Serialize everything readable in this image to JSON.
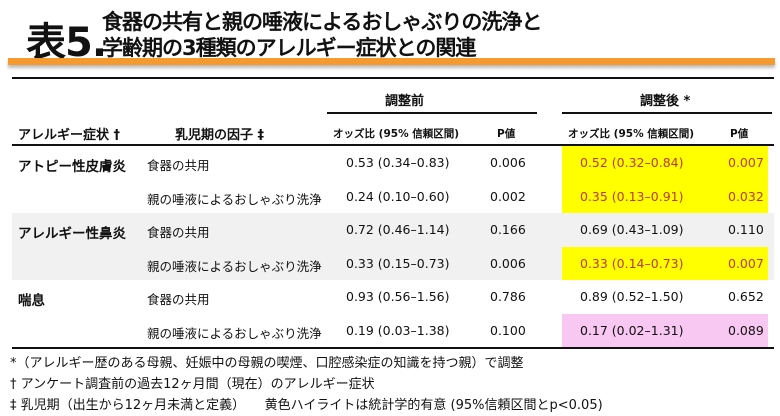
{
  "title": {
    "number": "表5.",
    "line1": "食器の共有と親の唾液によるおしゃぶりの洗浄と",
    "line2": "学齢期の3種類のアレルギー症状との関連"
  },
  "colors": {
    "accent_bar": "#f59a2e",
    "significant_highlight": "#ffff00",
    "pink_highlight": "#f8c8f2",
    "significant_text": "#c0392b"
  },
  "table": {
    "headers": {
      "symptom": "アレルギー症状 †",
      "factor": "乳児期の因子 ‡",
      "before": "調整前",
      "after": "調整後 *",
      "or": "オッズ比 (95% 信頼区間)",
      "p": "P値"
    },
    "rows": [
      {
        "symptom": "アトピー性皮膚炎",
        "factor": "食器の共用",
        "or_before": "0.53 (0.34–0.83)",
        "p_before": "0.006",
        "or_after": "0.52 (0.32–0.84)",
        "p_after": "0.007",
        "highlight": "yellow"
      },
      {
        "symptom": "",
        "factor": "親の唾液によるおしゃぶり洗浄",
        "or_before": "0.24 (0.10–0.60)",
        "p_before": "0.002",
        "or_after": "0.35 (0.13–0.91)",
        "p_after": "0.032",
        "highlight": "yellow"
      },
      {
        "symptom": "アレルギー性鼻炎",
        "factor": "食器の共用",
        "or_before": "0.72 (0.46–1.14)",
        "p_before": "0.166",
        "or_after": "0.69 (0.43–1.09)",
        "p_after": "0.110",
        "highlight": "none"
      },
      {
        "symptom": "",
        "factor": "親の唾液によるおしゃぶり洗浄",
        "or_before": "0.33 (0.15–0.73)",
        "p_before": "0.006",
        "or_after": "0.33 (0.14–0.73)",
        "p_after": "0.007",
        "highlight": "yellow"
      },
      {
        "symptom": "喘息",
        "factor": "食器の共用",
        "or_before": "0.93 (0.56–1.56)",
        "p_before": "0.786",
        "or_after": "0.89 (0.52–1.50)",
        "p_after": "0.652",
        "highlight": "none"
      },
      {
        "symptom": "",
        "factor": "親の唾液によるおしゃぶり洗浄",
        "or_before": "0.19 (0.03–1.38)",
        "p_before": "0.100",
        "or_after": "0.17 (0.02–1.31)",
        "p_after": "0.089",
        "highlight": "pink"
      }
    ]
  },
  "footnotes": [
    "*（アレルギー歴のある母親、妊娠中の母親の喫煙、口腔感染症の知識を持つ親）で調整",
    "† アンケート調査前の過去12ヶ月間（現在）のアレルギー症状",
    "‡ 乳児期（出生から12ヶ月未満と定義）　　黄色ハイライトは統計学的有意 (95%信頼区間とp<0.05)"
  ]
}
